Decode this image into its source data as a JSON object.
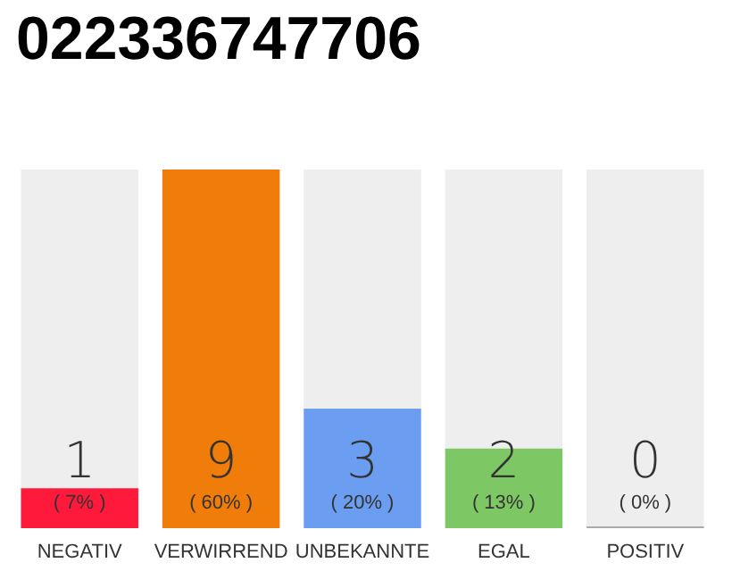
{
  "chart_data": {
    "type": "bar",
    "title": "022336747706",
    "stacked": true,
    "categories": [
      "NEGATIV",
      "VERWIRREND",
      "UNBEKANNTE",
      "EGAL",
      "POSITIV"
    ],
    "series": [
      {
        "colors": [
          "#ff1a3c",
          "#f07d0a",
          "#6b9ef0",
          "#7dc864",
          "#aaaaaa"
        ],
        "values": [
          1,
          9,
          3,
          2,
          0
        ],
        "value_labels": [
          "1\n( 7% )",
          "9\n( 60% )",
          "3\n( 20% )",
          "2\n( 13% )",
          "0\n( 0% )"
        ]
      },
      {
        "color": "#eeeeee",
        "values": [
          8,
          0,
          6,
          7,
          9
        ]
      }
    ],
    "ylim": [
      0,
      9
    ]
  }
}
